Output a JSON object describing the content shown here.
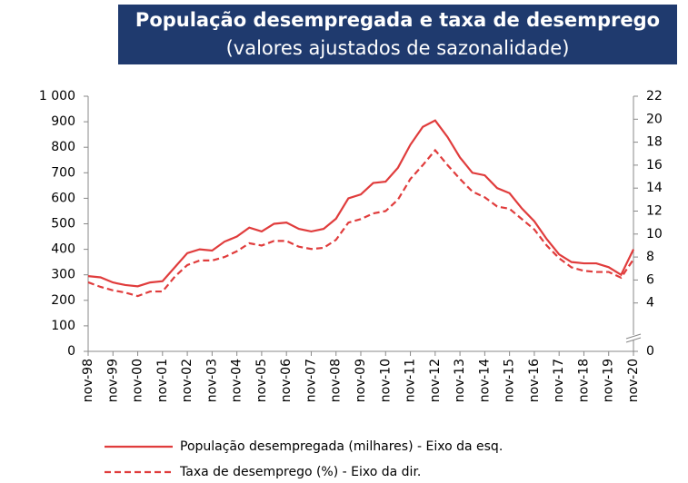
{
  "chart_data": {
    "type": "line",
    "title": "População desempregada e taxa de desemprego",
    "subtitle": "(valores ajustados de sazonalidade)",
    "categories": [
      "nov-98",
      null,
      "nov-99",
      null,
      "nov-00",
      null,
      "nov-01",
      null,
      "nov-02",
      null,
      "nov-03",
      null,
      "nov-04",
      null,
      "nov-05",
      null,
      "nov-06",
      null,
      "nov-07",
      null,
      "nov-08",
      null,
      "nov-09",
      null,
      "nov-10",
      null,
      "nov-11",
      null,
      "nov-12",
      null,
      "nov-13",
      null,
      "nov-14",
      null,
      "nov-15",
      null,
      "nov-16",
      null,
      "nov-17",
      null,
      "nov-18",
      null,
      "nov-19",
      null,
      "nov-20"
    ],
    "series": [
      {
        "name": "População desempregada (milhares) - Eixo da esq.",
        "color": "#e03c3c",
        "dash": false,
        "axis": "y",
        "values": [
          295,
          290,
          270,
          260,
          255,
          270,
          275,
          330,
          385,
          400,
          395,
          430,
          450,
          485,
          470,
          500,
          505,
          480,
          470,
          480,
          520,
          600,
          615,
          660,
          665,
          720,
          810,
          880,
          905,
          840,
          760,
          700,
          690,
          640,
          620,
          560,
          510,
          440,
          380,
          350,
          345,
          345,
          330,
          300,
          400
        ]
      },
      {
        "name": "Taxa de desemprego (%) - Eixo da dir.",
        "color": "#e03c3c",
        "dash": true,
        "axis": "y2",
        "values": [
          5.8,
          5.4,
          5.1,
          4.9,
          4.6,
          5.0,
          5.0,
          6.3,
          7.3,
          7.7,
          7.7,
          8.0,
          8.5,
          9.2,
          9.0,
          9.4,
          9.4,
          8.9,
          8.7,
          8.8,
          9.5,
          11.0,
          11.3,
          11.8,
          12.0,
          13.0,
          14.8,
          16.0,
          17.3,
          16.0,
          14.8,
          13.7,
          13.2,
          12.4,
          12.2,
          11.3,
          10.4,
          9.0,
          7.9,
          7.1,
          6.8,
          6.7,
          6.7,
          6.2,
          7.8
        ]
      }
    ],
    "ylim": [
      0,
      1000
    ],
    "yticks": [
      0,
      100,
      200,
      300,
      400,
      500,
      600,
      700,
      800,
      900,
      {
        "value": 1000,
        "label": "1 000"
      }
    ],
    "y2lim": [
      2,
      22
    ],
    "y2ticks": [
      0,
      4,
      6,
      8,
      10,
      12,
      14,
      16,
      18,
      20,
      22
    ],
    "y2_axis_break": true,
    "grid": false
  }
}
